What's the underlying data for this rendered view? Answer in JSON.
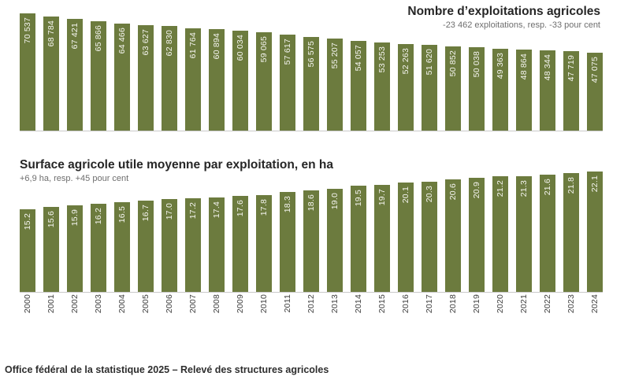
{
  "figure": {
    "footer": "Office fédéral de la statistique 2025 – Relevé des structures agricoles"
  },
  "colors": {
    "bar_green": "#6c7b3e",
    "bar_label_text": "#f5f5f0",
    "axis_line": "#c9c9c9",
    "title_text": "#262626",
    "subtitle_text": "#6e6e6e",
    "year_text": "#3d3d3d",
    "footer_text": "#2e2e2e"
  },
  "chart_data": [
    {
      "type": "bar",
      "title": "Nombre d’exploitations agricoles",
      "subtitle": "-23 462 exploitations, resp. -33 pour cent",
      "title_align": "right",
      "categories": [
        "2000",
        "2001",
        "2002",
        "2003",
        "2004",
        "2005",
        "2006",
        "2007",
        "2008",
        "2009",
        "2010",
        "2011",
        "2012",
        "2013",
        "2014",
        "2015",
        "2016",
        "2017",
        "2018",
        "2019",
        "2020",
        "2021",
        "2022",
        "2023",
        "2024"
      ],
      "values": [
        70537,
        68784,
        67421,
        65866,
        64466,
        63627,
        62830,
        61764,
        60894,
        60034,
        59065,
        57617,
        56575,
        55207,
        54057,
        53253,
        52263,
        51620,
        50852,
        50038,
        49363,
        48864,
        48344,
        47719,
        47075
      ],
      "bar_labels": [
        "70 537",
        "68 784",
        "67 421",
        "65 866",
        "64 466",
        "63 627",
        "62 830",
        "61 764",
        "60 894",
        "60 034",
        "59 065",
        "57 617",
        "56 575",
        "55 207",
        "54 057",
        "53 253",
        "52 263",
        "51 620",
        "50 852",
        "50 038",
        "49 363",
        "48 864",
        "48 344",
        "47 719",
        "47 075"
      ],
      "xlabel": "",
      "ylabel": "",
      "ylim": [
        0,
        70537
      ],
      "grid": false,
      "legend": "none",
      "bar_color": "#6c7b3e",
      "label_color": "#f5f5f0"
    },
    {
      "type": "bar",
      "title": "Surface agricole utile moyenne par exploitation, en ha",
      "subtitle": "+6,9 ha, resp. +45 pour cent",
      "title_align": "left",
      "categories": [
        "2000",
        "2001",
        "2002",
        "2003",
        "2004",
        "2005",
        "2006",
        "2007",
        "2008",
        "2009",
        "2010",
        "2011",
        "2012",
        "2013",
        "2014",
        "2015",
        "2016",
        "2017",
        "2018",
        "2019",
        "2020",
        "2021",
        "2022",
        "2023",
        "2024"
      ],
      "values": [
        15.2,
        15.6,
        15.9,
        16.2,
        16.5,
        16.7,
        17.0,
        17.2,
        17.4,
        17.6,
        17.8,
        18.3,
        18.6,
        19.0,
        19.5,
        19.7,
        20.1,
        20.3,
        20.6,
        20.9,
        21.2,
        21.3,
        21.6,
        21.8,
        22.1
      ],
      "bar_labels": [
        "15.2",
        "15.6",
        "15.9",
        "16.2",
        "16.5",
        "16.7",
        "17.0",
        "17.2",
        "17.4",
        "17.6",
        "17.8",
        "18.3",
        "18.6",
        "19.0",
        "19.5",
        "19.7",
        "20.1",
        "20.3",
        "20.6",
        "20.9",
        "21.2",
        "21.3",
        "21.6",
        "21.8",
        "22.1"
      ],
      "xlabel": "",
      "ylabel": "",
      "ylim": [
        0,
        22.1
      ],
      "grid": false,
      "legend": "none",
      "bar_color": "#6c7b3e",
      "label_color": "#f5f5f0"
    }
  ]
}
